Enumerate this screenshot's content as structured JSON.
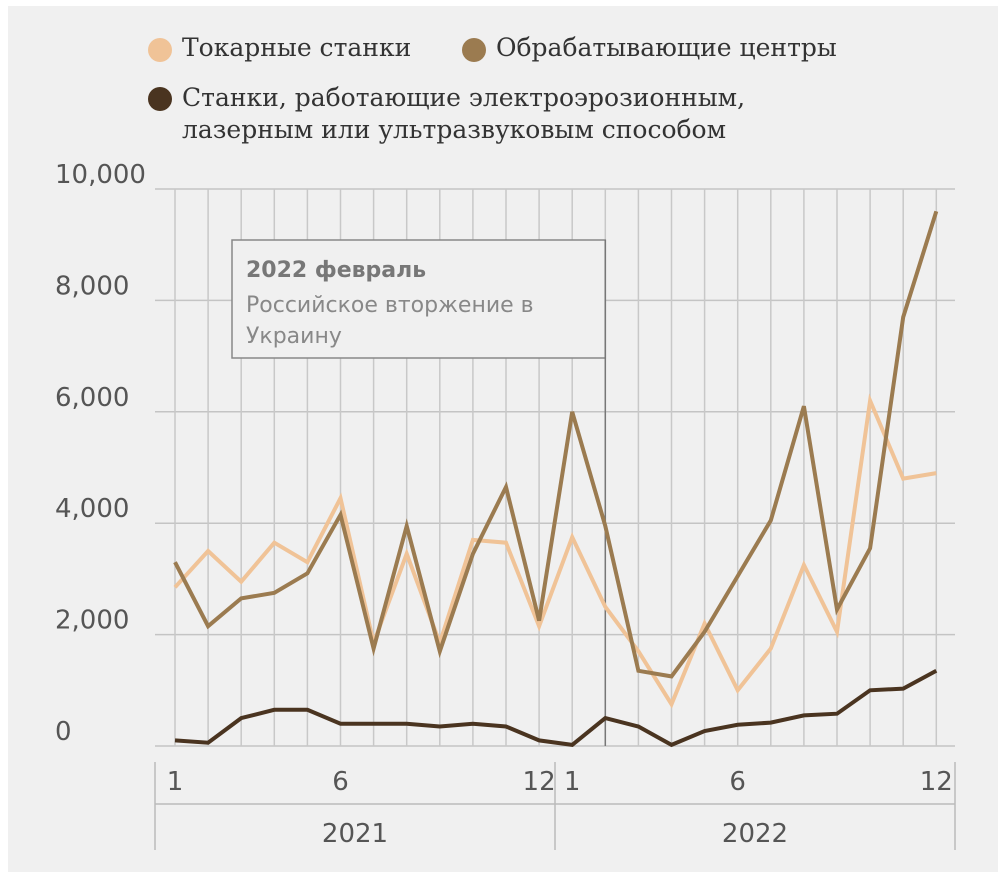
{
  "chart_data": {
    "type": "line",
    "legend_position": "top",
    "grid": true,
    "ylim": [
      0,
      10000
    ],
    "yticks": [
      "0",
      "2,000",
      "4,000",
      "6,000",
      "8,000",
      "10,000"
    ],
    "ytick_values": [
      0,
      2000,
      4000,
      6000,
      8000,
      10000
    ],
    "month_labels": [
      {
        "month": 1,
        "label": "1"
      },
      {
        "month": 6,
        "label": "6"
      },
      {
        "month": 12,
        "label": "12"
      },
      {
        "month": 13,
        "label": "1"
      },
      {
        "month": 18,
        "label": "6"
      },
      {
        "month": 24,
        "label": "12"
      }
    ],
    "years": [
      "2021",
      "2022"
    ],
    "series": [
      {
        "name": "Токарные станки",
        "color": "#f0c397",
        "values": [
          2850,
          3500,
          2950,
          3650,
          3300,
          4450,
          1850,
          3450,
          1850,
          3700,
          3650,
          2150,
          3750,
          2500,
          1700,
          750,
          2200,
          1000,
          1750,
          3250,
          2050,
          6200,
          4800,
          4900
        ]
      },
      {
        "name": "Обрабатывающие центры",
        "color": "#9b7b50",
        "values": [
          3300,
          2150,
          2650,
          2750,
          3100,
          4150,
          1750,
          3950,
          1700,
          3450,
          4650,
          2250,
          6000,
          3950,
          1350,
          1250,
          2050,
          3050,
          4050,
          6100,
          2450,
          3550,
          7700,
          9600
        ]
      },
      {
        "name": "Станки, работающие электроэрозионным, лазерным или ультразвуковым способом",
        "color": "#4a3420",
        "values": [
          100,
          60,
          500,
          650,
          650,
          400,
          400,
          400,
          350,
          400,
          350,
          100,
          20,
          500,
          350,
          20,
          270,
          380,
          420,
          550,
          580,
          1000,
          1030,
          1350
        ]
      }
    ],
    "annotation": {
      "month": 14,
      "title": "2022 февраль",
      "text_line1": "Российское вторжение в",
      "text_line2": "Украину"
    }
  },
  "legend": {
    "item1": "Токарные станки",
    "item2": "Обрабатывающие центры",
    "item3_line1": "Станки, работающие электроэрозионным,",
    "item3_line2": "лазерным или ультразвуковым способом"
  }
}
